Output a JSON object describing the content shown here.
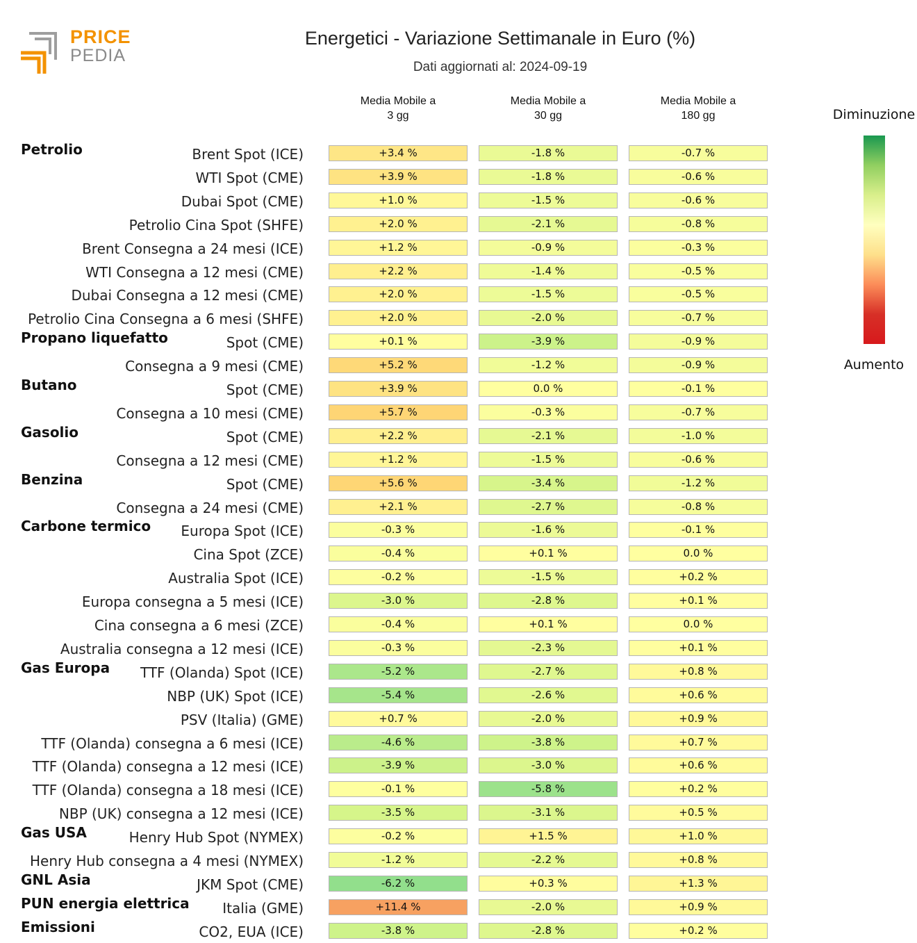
{
  "brand": {
    "line1": "PRICE",
    "line2": "PEDIA"
  },
  "header": {
    "title": "Energetici - Variazione Settimanale in Euro (%)",
    "subtitle": "Dati aggiornati al: 2024-09-19"
  },
  "legend": {
    "top": "Diminuzione",
    "bottom": "Aumento"
  },
  "chart_data": {
    "type": "table",
    "title": "Energetici - Variazione Settimanale in Euro (%)",
    "columns": [
      "Media Mobile a\n3 gg",
      "Media Mobile a\n30 gg",
      "Media Mobile a\n180 gg"
    ],
    "groups": [
      {
        "name": "Petrolio",
        "rows": [
          {
            "label": "Brent Spot (ICE)",
            "values": [
              "+3.4 %",
              "-1.8 %",
              "-0.7 %"
            ]
          },
          {
            "label": "WTI Spot (CME)",
            "values": [
              "+3.9 %",
              "-1.8 %",
              "-0.6 %"
            ]
          },
          {
            "label": "Dubai Spot (CME)",
            "values": [
              "+1.0 %",
              "-1.5 %",
              "-0.6 %"
            ]
          },
          {
            "label": "Petrolio Cina Spot (SHFE)",
            "values": [
              "+2.0 %",
              "-2.1 %",
              "-0.8 %"
            ]
          },
          {
            "label": "Brent Consegna a 24 mesi (ICE)",
            "values": [
              "+1.2 %",
              "-0.9 %",
              "-0.3 %"
            ]
          },
          {
            "label": "WTI Consegna a 12 mesi (CME)",
            "values": [
              "+2.2 %",
              "-1.4 %",
              "-0.5 %"
            ]
          },
          {
            "label": "Dubai Consegna a 12 mesi (CME)",
            "values": [
              "+2.0 %",
              "-1.5 %",
              "-0.5 %"
            ]
          },
          {
            "label": "Petrolio Cina Consegna a 6 mesi (SHFE)",
            "values": [
              "+2.0 %",
              "-2.0 %",
              "-0.7 %"
            ]
          }
        ]
      },
      {
        "name": "Propano liquefatto",
        "rows": [
          {
            "label": "Spot (CME)",
            "values": [
              "+0.1 %",
              "-3.9 %",
              "-0.9 %"
            ]
          },
          {
            "label": "Consegna a 9 mesi (CME)",
            "values": [
              "+5.2 %",
              "-1.2 %",
              "-0.9 %"
            ]
          }
        ]
      },
      {
        "name": "Butano",
        "rows": [
          {
            "label": "Spot (CME)",
            "values": [
              "+3.9 %",
              "0.0 %",
              "-0.1 %"
            ]
          },
          {
            "label": "Consegna a 10 mesi (CME)",
            "values": [
              "+5.7 %",
              "-0.3 %",
              "-0.7 %"
            ]
          }
        ]
      },
      {
        "name": "Gasolio",
        "rows": [
          {
            "label": "Spot (CME)",
            "values": [
              "+2.2 %",
              "-2.1 %",
              "-1.0 %"
            ]
          },
          {
            "label": "Consegna a 12 mesi (CME)",
            "values": [
              "+1.2 %",
              "-1.5 %",
              "-0.6 %"
            ]
          }
        ]
      },
      {
        "name": "Benzina",
        "rows": [
          {
            "label": "Spot (CME)",
            "values": [
              "+5.6 %",
              "-3.4 %",
              "-1.2 %"
            ]
          },
          {
            "label": "Consegna a 24 mesi (CME)",
            "values": [
              "+2.1 %",
              "-2.7 %",
              "-0.8 %"
            ]
          }
        ]
      },
      {
        "name": "Carbone termico",
        "rows": [
          {
            "label": "Europa Spot (ICE)",
            "values": [
              "-0.3 %",
              "-1.6 %",
              "-0.1 %"
            ]
          },
          {
            "label": "Cina Spot (ZCE)",
            "values": [
              "-0.4 %",
              "+0.1 %",
              "0.0 %"
            ]
          },
          {
            "label": "Australia Spot (ICE)",
            "values": [
              "-0.2 %",
              "-1.5 %",
              "+0.2 %"
            ]
          },
          {
            "label": "Europa consegna a 5 mesi (ICE)",
            "values": [
              "-3.0 %",
              "-2.8 %",
              "+0.1 %"
            ]
          },
          {
            "label": "Cina consegna a 6 mesi (ZCE)",
            "values": [
              "-0.4 %",
              "+0.1 %",
              "0.0 %"
            ]
          },
          {
            "label": "Australia consegna a 12 mesi (ICE)",
            "values": [
              "-0.3 %",
              "-2.3 %",
              "+0.1 %"
            ]
          }
        ]
      },
      {
        "name": "Gas Europa",
        "rows": [
          {
            "label": "TTF (Olanda) Spot (ICE)",
            "values": [
              "-5.2 %",
              "-2.7 %",
              "+0.8 %"
            ]
          },
          {
            "label": "NBP (UK) Spot (ICE)",
            "values": [
              "-5.4 %",
              "-2.6 %",
              "+0.6 %"
            ]
          },
          {
            "label": "PSV (Italia) (GME)",
            "values": [
              "+0.7 %",
              "-2.0 %",
              "+0.9 %"
            ]
          },
          {
            "label": "TTF (Olanda) consegna a 6 mesi (ICE)",
            "values": [
              "-4.6 %",
              "-3.8 %",
              "+0.7 %"
            ]
          },
          {
            "label": "TTF (Olanda) consegna a 12 mesi (ICE)",
            "values": [
              "-3.9 %",
              "-3.0 %",
              "+0.6 %"
            ]
          },
          {
            "label": "TTF (Olanda) consegna a 18 mesi (ICE)",
            "values": [
              "-0.1 %",
              "-5.8 %",
              "+0.2 %"
            ]
          },
          {
            "label": "NBP (UK) consegna a 12 mesi (ICE)",
            "values": [
              "-3.5 %",
              "-3.1 %",
              "+0.5 %"
            ]
          }
        ]
      },
      {
        "name": "Gas USA",
        "rows": [
          {
            "label": "Henry Hub Spot (NYMEX)",
            "values": [
              "-0.2 %",
              "+1.5 %",
              "+1.0 %"
            ]
          },
          {
            "label": "Henry Hub consegna a 4 mesi (NYMEX)",
            "values": [
              "-1.2 %",
              "-2.2 %",
              "+0.8 %"
            ]
          }
        ]
      },
      {
        "name": "GNL Asia",
        "rows": [
          {
            "label": "JKM Spot (CME)",
            "values": [
              "-6.2 %",
              "+0.3 %",
              "+1.3 %"
            ]
          }
        ]
      },
      {
        "name": "PUN energia elettrica",
        "rows": [
          {
            "label": "Italia (GME)",
            "values": [
              "+11.4 %",
              "-2.0 %",
              "+0.9 %"
            ]
          }
        ]
      },
      {
        "name": "Emissioni",
        "rows": [
          {
            "label": "CO2, EUA (ICE)",
            "values": [
              "-3.8 %",
              "-2.8 %",
              "+0.2 %"
            ]
          }
        ]
      }
    ]
  }
}
